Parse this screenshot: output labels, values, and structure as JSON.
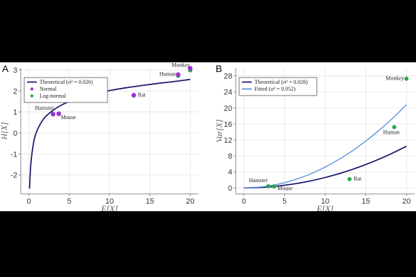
{
  "chart_data": [
    {
      "panel": "A",
      "type": "line",
      "xlabel": "E[X]",
      "ylabel": "H[X]",
      "xlim": [
        -1,
        21
      ],
      "ylim": [
        -2.9,
        3.1
      ],
      "xticks": [
        0,
        5,
        10,
        15,
        20
      ],
      "yticks": [
        -2,
        -1,
        0,
        1,
        2,
        3
      ],
      "grid": true,
      "legend_position": "top-left",
      "legend": [
        "Theoretical (σ² = 0.026)",
        "Normal",
        "Log-normal"
      ],
      "series": [
        {
          "name": "Theoretical (σ² = 0.026)",
          "color": "#1a1a6e",
          "x": [
            0.08,
            0.2,
            0.4,
            0.7,
            1,
            1.5,
            2,
            3,
            4,
            5,
            6,
            8,
            10,
            12,
            14,
            16,
            18,
            20
          ],
          "y": [
            -2.65,
            -1.7,
            -0.92,
            -0.25,
            0.1,
            0.48,
            0.75,
            1.08,
            1.32,
            1.5,
            1.64,
            1.86,
            2.02,
            2.15,
            2.26,
            2.36,
            2.45,
            2.55
          ]
        }
      ],
      "points": [
        {
          "label": "Hamster",
          "x": 3.0,
          "normal": 0.9,
          "lognormal": 0.88
        },
        {
          "label": "Mouse",
          "x": 3.7,
          "normal": 0.92,
          "lognormal": 0.9
        },
        {
          "label": "Rat",
          "x": 13.0,
          "normal": 1.8,
          "lognormal": 1.78
        },
        {
          "label": "Human",
          "x": 18.5,
          "normal": 2.78,
          "lognormal": 2.72
        },
        {
          "label": "Monkey",
          "x": 20.0,
          "normal": 3.08,
          "lognormal": 2.98
        }
      ],
      "colors": {
        "normal": "#9b30d9",
        "lognormal": "#2aa64a"
      }
    },
    {
      "panel": "B",
      "type": "line",
      "xlabel": "E[X]",
      "ylabel": "Var[X]",
      "xlim": [
        -1,
        21
      ],
      "ylim": [
        -1.5,
        30
      ],
      "xticks": [
        0,
        5,
        10,
        15,
        20
      ],
      "yticks": [
        0,
        4,
        8,
        12,
        16,
        20,
        24,
        28
      ],
      "grid": true,
      "legend_position": "top-left",
      "legend": [
        "Theoretical (σ² = 0.026)",
        "Fitted (σ² = 0.052)"
      ],
      "series": [
        {
          "name": "Theoretical (σ² = 0.026)",
          "color": "#1a1a6e",
          "x": [
            0,
            2,
            4,
            6,
            8,
            10,
            12,
            14,
            16,
            18,
            20
          ],
          "y": [
            0,
            0.1,
            0.42,
            0.94,
            1.66,
            2.6,
            3.74,
            5.1,
            6.65,
            8.42,
            10.4
          ]
        },
        {
          "name": "Fitted (σ² = 0.052)",
          "color": "#5b8fe0",
          "x": [
            0,
            2,
            4,
            6,
            8,
            10,
            12,
            14,
            16,
            18,
            20
          ],
          "y": [
            0,
            0.21,
            0.83,
            1.87,
            3.33,
            5.2,
            7.49,
            10.19,
            13.31,
            16.85,
            20.8
          ]
        }
      ],
      "points": [
        {
          "label": "Hamster",
          "x": 3.0,
          "y": 0.4
        },
        {
          "label": "Mouse",
          "x": 3.7,
          "y": 0.35
        },
        {
          "label": "Rat",
          "x": 13.0,
          "y": 2.2
        },
        {
          "label": "Human",
          "x": 18.5,
          "y": 15.2
        },
        {
          "label": "Monkey",
          "x": 20.0,
          "y": 27.3
        }
      ],
      "colors": {
        "points": "#2aa64a"
      }
    }
  ]
}
